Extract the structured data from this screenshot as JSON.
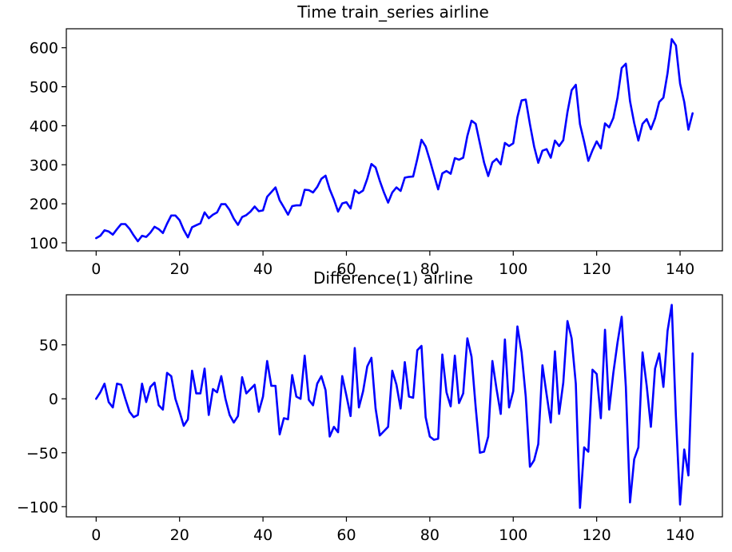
{
  "colors": {
    "line": "#0000ff",
    "frame": "#000000",
    "background": "#ffffff"
  },
  "chart_data": [
    {
      "type": "line",
      "title": "Time train_series airline",
      "xlabel": "",
      "ylabel": "",
      "grid": false,
      "xlim": [
        -7.15,
        150.15
      ],
      "ylim": [
        79.4,
        648.6
      ],
      "xticks": [
        0,
        20,
        40,
        60,
        80,
        100,
        120,
        140
      ],
      "yticks": [
        100,
        200,
        300,
        400,
        500,
        600
      ],
      "series": [
        {
          "color": "#0000ff",
          "values": [
            112,
            118,
            132,
            129,
            121,
            135,
            148,
            148,
            136,
            119,
            104,
            118,
            115,
            126,
            141,
            135,
            125,
            149,
            170,
            170,
            158,
            133,
            114,
            140,
            145,
            150,
            178,
            163,
            172,
            178,
            199,
            199,
            184,
            162,
            146,
            166,
            171,
            180,
            193,
            181,
            183,
            218,
            230,
            242,
            209,
            191,
            172,
            194,
            196,
            196,
            236,
            235,
            229,
            243,
            264,
            272,
            237,
            211,
            180,
            201,
            204,
            188,
            235,
            227,
            234,
            264,
            302,
            293,
            259,
            229,
            203,
            229,
            242,
            233,
            267,
            269,
            270,
            315,
            364,
            347,
            312,
            274,
            237,
            278,
            284,
            277,
            317,
            313,
            318,
            374,
            413,
            405,
            355,
            306,
            271,
            306,
            315,
            301,
            356,
            348,
            355,
            422,
            465,
            467,
            404,
            347,
            305,
            336,
            340,
            318,
            362,
            348,
            363,
            435,
            491,
            505,
            404,
            359,
            310,
            337,
            360,
            342,
            406,
            396,
            420,
            472,
            548,
            559,
            463,
            407,
            362,
            405,
            417,
            391,
            419,
            461,
            472,
            535,
            622,
            606,
            508,
            461,
            390,
            432
          ]
        }
      ]
    },
    {
      "type": "line",
      "title": "Difference(1) airline",
      "xlabel": "",
      "ylabel": "",
      "grid": false,
      "xlim": [
        -7.15,
        150.15
      ],
      "ylim": [
        -109.4,
        96.4
      ],
      "xticks": [
        0,
        20,
        40,
        60,
        80,
        100,
        120,
        140
      ],
      "yticks": [
        -100,
        -50,
        0,
        50
      ],
      "series": [
        {
          "color": "#0000ff",
          "values": [
            0,
            6,
            14,
            -3,
            -8,
            14,
            13,
            0,
            -12,
            -17,
            -15,
            14,
            -3,
            11,
            15,
            -6,
            -10,
            24,
            21,
            0,
            -12,
            -25,
            -19,
            26,
            5,
            5,
            28,
            -15,
            9,
            6,
            21,
            0,
            -15,
            -22,
            -16,
            20,
            5,
            9,
            13,
            -12,
            2,
            35,
            12,
            12,
            -33,
            -18,
            -19,
            22,
            2,
            0,
            40,
            -1,
            -6,
            14,
            21,
            8,
            -35,
            -26,
            -31,
            21,
            3,
            -16,
            47,
            -8,
            7,
            30,
            38,
            -9,
            -34,
            -30,
            -26,
            26,
            13,
            -9,
            34,
            2,
            1,
            45,
            49,
            -17,
            -35,
            -38,
            -37,
            41,
            6,
            -7,
            40,
            -4,
            5,
            56,
            39,
            -8,
            -50,
            -49,
            -35,
            35,
            9,
            -14,
            55,
            -8,
            7,
            67,
            43,
            2,
            -63,
            -57,
            -42,
            31,
            4,
            -22,
            44,
            -14,
            15,
            72,
            56,
            14,
            -101,
            -45,
            -49,
            27,
            23,
            -18,
            64,
            -10,
            24,
            52,
            76,
            11,
            -96,
            -56,
            -45,
            43,
            12,
            -26,
            28,
            42,
            11,
            63,
            87,
            -16,
            -98,
            -47,
            -71,
            42
          ]
        }
      ]
    }
  ]
}
